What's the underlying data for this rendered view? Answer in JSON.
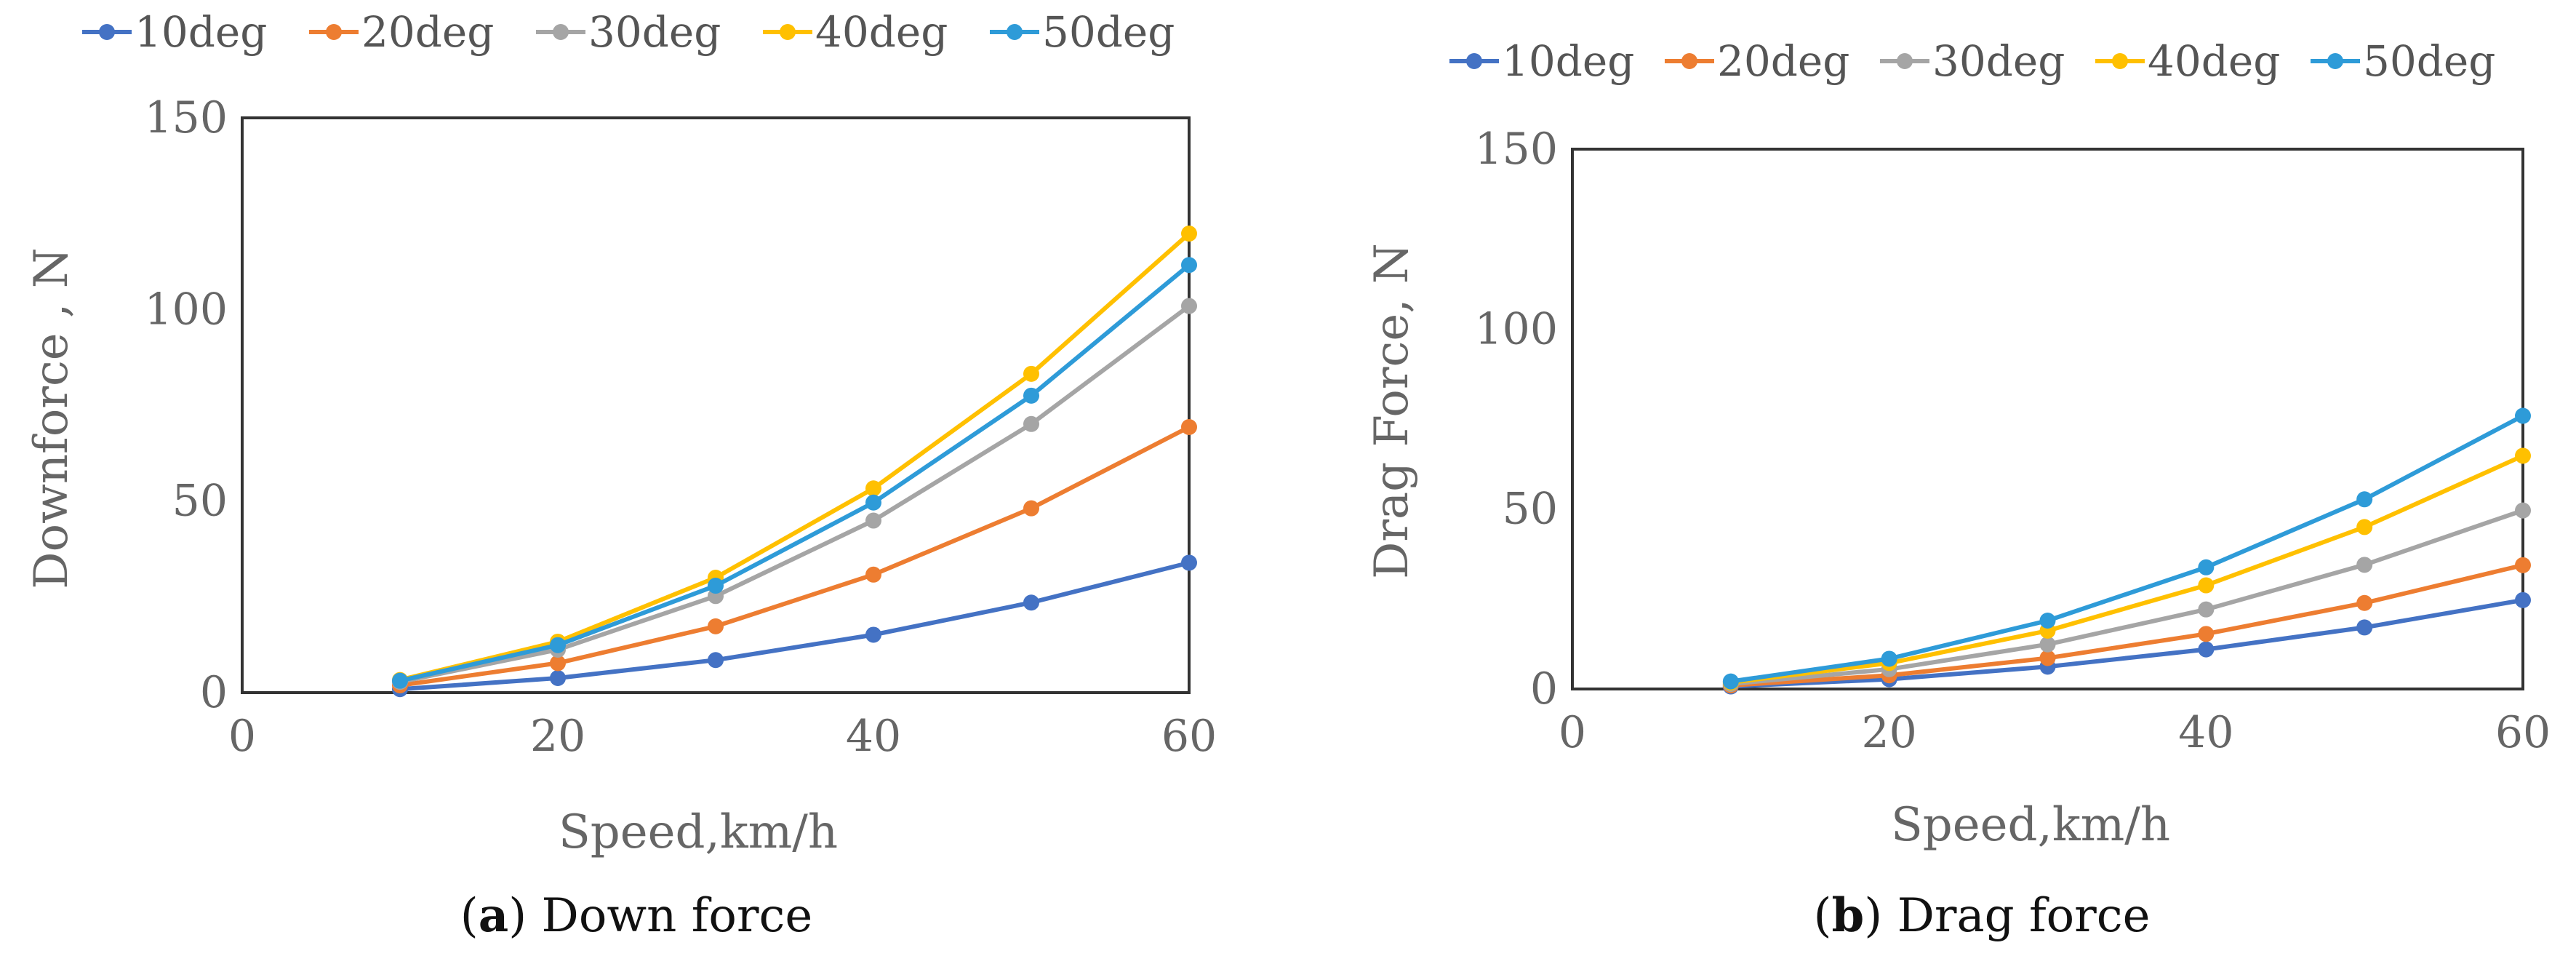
{
  "chart_data": [
    {
      "type": "line",
      "title": "",
      "xlabel": "Speed,km/h",
      "ylabel": "Downforce , N",
      "xlim": [
        0,
        60
      ],
      "ylim": [
        0,
        150
      ],
      "xticks": [
        "0",
        "20",
        "40",
        "60"
      ],
      "yticks": [
        "0",
        "50",
        "100",
        "150"
      ],
      "grid": false,
      "legend_position": "top",
      "x": [
        10,
        20,
        30,
        40,
        50,
        60
      ],
      "series": [
        {
          "name": "10deg",
          "color": "#4472C4",
          "values": [
            0.9,
            3.8,
            8.5,
            15.1,
            23.5,
            33.9
          ]
        },
        {
          "name": "20deg",
          "color": "#ED7D31",
          "values": [
            1.9,
            7.7,
            17.3,
            30.8,
            48.1,
            69.3
          ]
        },
        {
          "name": "30deg",
          "color": "#A5A5A5",
          "values": [
            2.8,
            11.2,
            25.2,
            44.9,
            70.1,
            100.9
          ]
        },
        {
          "name": "40deg",
          "color": "#FFC000",
          "values": [
            3.3,
            13.3,
            30.0,
            53.3,
            83.2,
            119.8
          ]
        },
        {
          "name": "50deg",
          "color": "#2E9BD8",
          "values": [
            3.1,
            12.4,
            27.9,
            49.6,
            77.5,
            111.6
          ]
        }
      ],
      "caption": {
        "letter": "a",
        "text": "Down force"
      }
    },
    {
      "type": "line",
      "title": "",
      "xlabel": "Speed,km/h",
      "ylabel": "Drag Force, N",
      "xlim": [
        0,
        60
      ],
      "ylim": [
        0,
        150
      ],
      "xticks": [
        "0",
        "20",
        "40",
        "60"
      ],
      "yticks": [
        "0",
        "50",
        "100",
        "150"
      ],
      "grid": false,
      "legend_position": "top",
      "x": [
        10,
        20,
        30,
        40,
        50,
        60
      ],
      "series": [
        {
          "name": "10deg",
          "color": "#4472C4",
          "values": [
            0.7,
            2.7,
            6.2,
            11.0,
            17.1,
            24.7
          ]
        },
        {
          "name": "20deg",
          "color": "#ED7D31",
          "values": [
            1.0,
            3.8,
            8.6,
            15.3,
            23.9,
            34.4
          ]
        },
        {
          "name": "30deg",
          "color": "#A5A5A5",
          "values": [
            1.4,
            5.5,
            12.4,
            22.1,
            34.5,
            49.6
          ]
        },
        {
          "name": "40deg",
          "color": "#FFC000",
          "values": [
            1.8,
            7.2,
            16.2,
            28.8,
            45.0,
            64.8
          ]
        },
        {
          "name": "50deg",
          "color": "#2E9BD8",
          "values": [
            2.1,
            8.4,
            19.0,
            33.8,
            52.7,
            75.9
          ]
        }
      ],
      "caption": {
        "letter": "b",
        "text": "Drag force"
      }
    }
  ]
}
